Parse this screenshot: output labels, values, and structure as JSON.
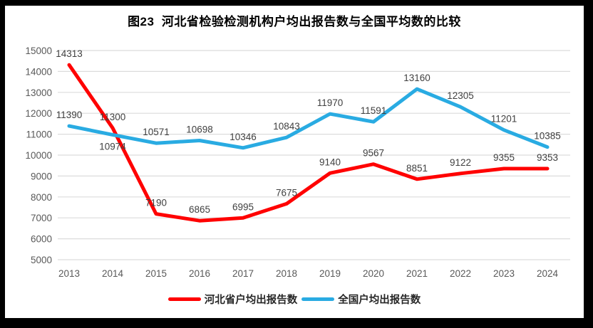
{
  "chart_data": {
    "type": "line",
    "title": "图23  河北省检验检测机构户均出报告数与全国平均数的比较",
    "categories": [
      "2013",
      "2014",
      "2015",
      "2016",
      "2017",
      "2018",
      "2019",
      "2020",
      "2021",
      "2022",
      "2023",
      "2024"
    ],
    "series": [
      {
        "name": "河北省户均出报告数",
        "color": "#FF0000",
        "values": [
          14313,
          11300,
          7190,
          6865,
          6995,
          7675,
          9140,
          9567,
          8851,
          9122,
          9355,
          9353
        ],
        "labels_below": []
      },
      {
        "name": "全国户均出报告数",
        "color": "#29ABE2",
        "values": [
          11390,
          10974,
          10571,
          10698,
          10346,
          10843,
          11970,
          11591,
          13160,
          12305,
          11201,
          10385
        ],
        "labels_below": [
          1
        ]
      }
    ],
    "xlabel": "",
    "ylabel": "",
    "ylim": [
      5000,
      15000
    ],
    "ytick_step": 1000,
    "grid": true,
    "legend_position": "bottom",
    "colors": {
      "gridline": "#DCDCDC",
      "tick_label": "#595959",
      "data_label": "#404040",
      "frame_border": "#000000",
      "background": "#FFFFFF"
    }
  }
}
